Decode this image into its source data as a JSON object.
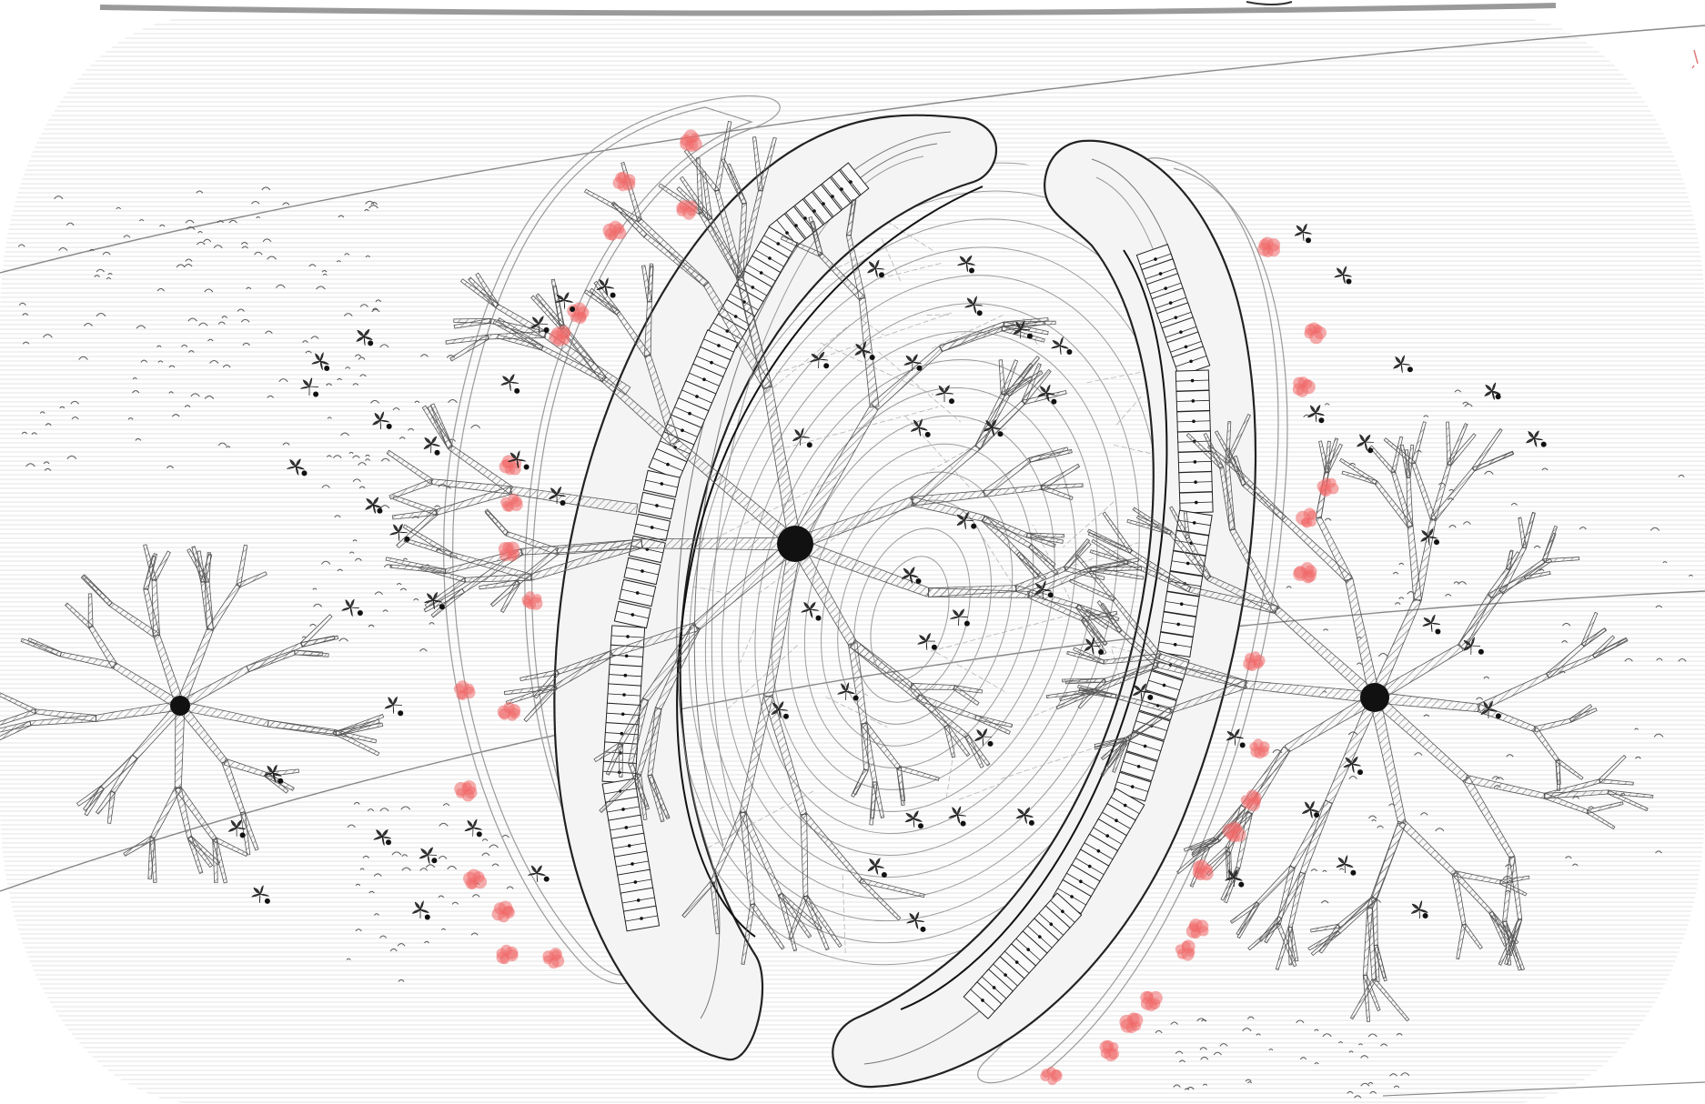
{
  "drawing": {
    "colors": {
      "background": "#ffffff",
      "hatch": "#9a9a9a",
      "ink": "#111111",
      "stroke": "#3a3a3a",
      "light_stroke": "#8a8a8a",
      "accent_pink": "#f06a6a"
    },
    "icons": {
      "node": "black-dot",
      "plant": "leaf-cluster-icon",
      "bloom": "pink-blossom-icon"
    }
  }
}
